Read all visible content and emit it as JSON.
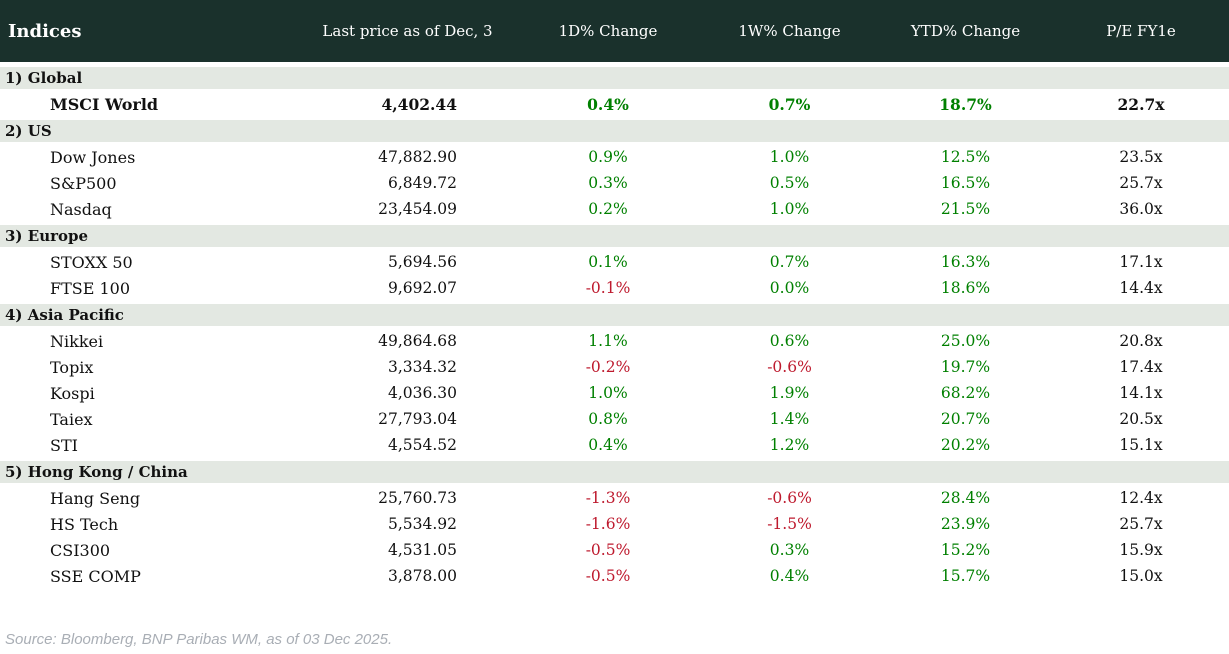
{
  "colors": {
    "header_bg": "#1a312c",
    "section_bg": "#e3e8e2",
    "positive": "#008000",
    "negative": "#be1a2e",
    "source_text": "#a9aeb5"
  },
  "chart_data": {
    "type": "table",
    "title": "Indices",
    "columns": [
      "Last price as of Dec, 3",
      "1D% Change",
      "1W% Change",
      "YTD% Change",
      "P/E FY1e"
    ],
    "sections": [
      {
        "label": "1) Global",
        "rows": [
          {
            "name": "MSCI World",
            "price": "4,402.44",
            "d1": "0.4%",
            "w1": "0.7%",
            "ytd": "18.7%",
            "pe": "22.7x",
            "bold": true
          }
        ]
      },
      {
        "label": "2) US",
        "rows": [
          {
            "name": "Dow Jones",
            "price": "47,882.90",
            "d1": "0.9%",
            "w1": "1.0%",
            "ytd": "12.5%",
            "pe": "23.5x",
            "bold": false
          },
          {
            "name": "S&P500",
            "price": "6,849.72",
            "d1": "0.3%",
            "w1": "0.5%",
            "ytd": "16.5%",
            "pe": "25.7x",
            "bold": false
          },
          {
            "name": "Nasdaq",
            "price": "23,454.09",
            "d1": "0.2%",
            "w1": "1.0%",
            "ytd": "21.5%",
            "pe": "36.0x",
            "bold": false
          }
        ]
      },
      {
        "label": "3) Europe",
        "rows": [
          {
            "name": "STOXX 50",
            "price": "5,694.56",
            "d1": "0.1%",
            "w1": "0.7%",
            "ytd": "16.3%",
            "pe": "17.1x",
            "bold": false
          },
          {
            "name": "FTSE 100",
            "price": "9,692.07",
            "d1": "-0.1%",
            "w1": "0.0%",
            "ytd": "18.6%",
            "pe": "14.4x",
            "bold": false
          }
        ]
      },
      {
        "label": "4) Asia Pacific",
        "rows": [
          {
            "name": "Nikkei",
            "price": "49,864.68",
            "d1": "1.1%",
            "w1": "0.6%",
            "ytd": "25.0%",
            "pe": "20.8x",
            "bold": false
          },
          {
            "name": "Topix",
            "price": "3,334.32",
            "d1": "-0.2%",
            "w1": "-0.6%",
            "ytd": "19.7%",
            "pe": "17.4x",
            "bold": false
          },
          {
            "name": "Kospi",
            "price": "4,036.30",
            "d1": "1.0%",
            "w1": "1.9%",
            "ytd": "68.2%",
            "pe": "14.1x",
            "bold": false
          },
          {
            "name": "Taiex",
            "price": "27,793.04",
            "d1": "0.8%",
            "w1": "1.4%",
            "ytd": "20.7%",
            "pe": "20.5x",
            "bold": false
          },
          {
            "name": "STI",
            "price": "4,554.52",
            "d1": "0.4%",
            "w1": "1.2%",
            "ytd": "20.2%",
            "pe": "15.1x",
            "bold": false
          }
        ]
      },
      {
        "label": "5) Hong Kong / China",
        "rows": [
          {
            "name": "Hang Seng",
            "price": "25,760.73",
            "d1": "-1.3%",
            "w1": "-0.6%",
            "ytd": "28.4%",
            "pe": "12.4x",
            "bold": false
          },
          {
            "name": "HS Tech",
            "price": "5,534.92",
            "d1": "-1.6%",
            "w1": "-1.5%",
            "ytd": "23.9%",
            "pe": "25.7x",
            "bold": false
          },
          {
            "name": "CSI300",
            "price": "4,531.05",
            "d1": "-0.5%",
            "w1": "0.3%",
            "ytd": "15.2%",
            "pe": "15.9x",
            "bold": false
          },
          {
            "name": "SSE COMP",
            "price": "3,878.00",
            "d1": "-0.5%",
            "w1": "0.4%",
            "ytd": "15.7%",
            "pe": "15.0x",
            "bold": false
          }
        ]
      }
    ],
    "source": "Source: Bloomberg, BNP Paribas WM, as of 03 Dec 2025."
  }
}
